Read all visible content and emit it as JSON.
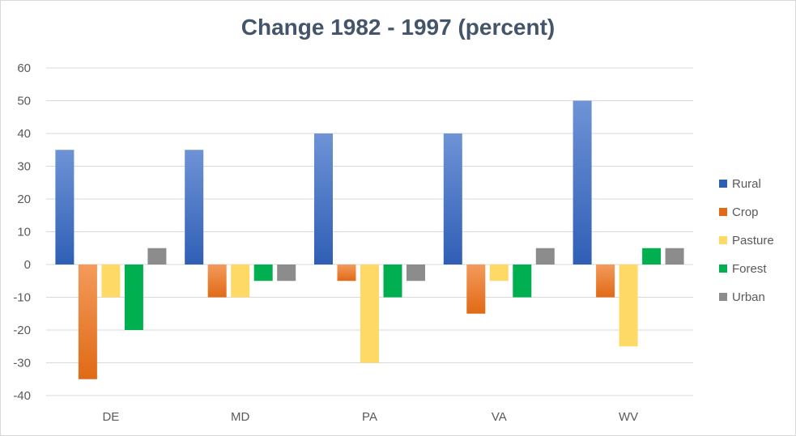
{
  "chart_data": {
    "type": "bar",
    "title": "Change 1982 - 1997 (percent)",
    "categories": [
      "DE",
      "MD",
      "PA",
      "VA",
      "WV"
    ],
    "series": [
      {
        "name": "Rural",
        "values": [
          35,
          35,
          40,
          40,
          50
        ]
      },
      {
        "name": "Crop",
        "values": [
          -35,
          -10,
          -5,
          -15,
          -10
        ]
      },
      {
        "name": "Pasture",
        "values": [
          -10,
          -10,
          -30,
          -5,
          -25
        ]
      },
      {
        "name": "Forest",
        "values": [
          -20,
          -5,
          -10,
          -10,
          5
        ]
      },
      {
        "name": "Urban",
        "values": [
          5,
          -5,
          -5,
          5,
          5
        ]
      }
    ],
    "colors": {
      "Rural": [
        "#6e93d6",
        "#2f5fb5"
      ],
      "Crop": [
        "#f49a5b",
        "#e06a16"
      ],
      "Pasture": [
        "#ffd966",
        "#ffd966"
      ],
      "Forest": [
        "#00b050",
        "#00b050"
      ],
      "Urban": [
        "#8c8c8c",
        "#8c8c8c"
      ]
    },
    "ylim": [
      -40,
      60
    ],
    "yticks": [
      "60",
      "50",
      "40",
      "30",
      "20",
      "10",
      "0",
      "-10",
      "-20",
      "-30",
      "-40"
    ],
    "grid": true,
    "legend_position": "right"
  }
}
